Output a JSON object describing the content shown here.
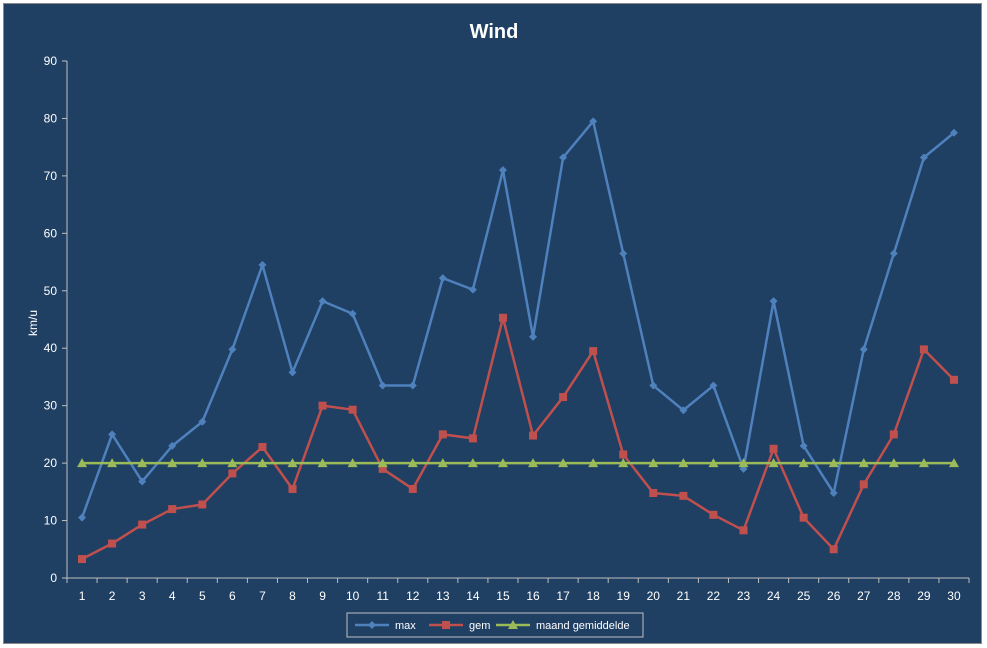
{
  "chart_data": {
    "type": "line",
    "title": "Wind",
    "xlabel": "",
    "ylabel": "km/u",
    "ylim": [
      0,
      90
    ],
    "yticks": [
      0,
      10,
      20,
      30,
      40,
      50,
      60,
      70,
      80,
      90
    ],
    "grid": false,
    "legend_position": "bottom",
    "background_color": "#1f3f63",
    "categories": [
      "1",
      "2",
      "3",
      "4",
      "5",
      "6",
      "7",
      "8",
      "9",
      "10",
      "11",
      "12",
      "13",
      "14",
      "15",
      "16",
      "17",
      "18",
      "19",
      "20",
      "21",
      "22",
      "23",
      "24",
      "25",
      "26",
      "27",
      "28",
      "29",
      "30"
    ],
    "series": [
      {
        "name": "max",
        "color": "#4f81bd",
        "marker": "diamond",
        "values": [
          10.5,
          25.0,
          16.8,
          23.0,
          27.2,
          39.8,
          54.5,
          35.8,
          48.2,
          46.0,
          33.5,
          33.5,
          52.2,
          50.2,
          71.0,
          42.0,
          73.2,
          79.5,
          56.5,
          33.5,
          29.2,
          33.5,
          19.0,
          48.2,
          23.0,
          14.8,
          39.8,
          56.5,
          73.2,
          77.5
        ]
      },
      {
        "name": "gem",
        "color": "#c0504d",
        "marker": "square",
        "values": [
          3.3,
          6.0,
          9.3,
          12.0,
          12.8,
          18.2,
          22.8,
          15.5,
          30.0,
          29.3,
          19.0,
          15.5,
          25.0,
          24.3,
          45.3,
          24.8,
          31.5,
          39.5,
          21.5,
          14.8,
          14.3,
          11.0,
          8.3,
          22.5,
          10.5,
          5.0,
          16.3,
          25.0,
          39.8,
          34.5
        ]
      },
      {
        "name": "maand gemiddelde",
        "color": "#9bbb59",
        "marker": "triangle",
        "values": [
          20,
          20,
          20,
          20,
          20,
          20,
          20,
          20,
          20,
          20,
          20,
          20,
          20,
          20,
          20,
          20,
          20,
          20,
          20,
          20,
          20,
          20,
          20,
          20,
          20,
          20,
          20,
          20,
          20,
          20
        ]
      }
    ]
  }
}
